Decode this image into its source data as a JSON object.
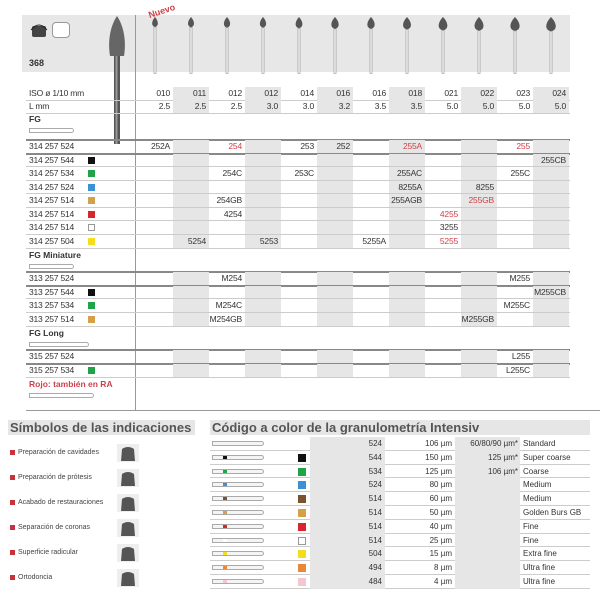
{
  "product": {
    "number": "368",
    "new_label": "Nuevo",
    "indication_icons": [
      "preparacion-protesis-icon",
      "acabado-restauraciones-icon"
    ]
  },
  "columns": {
    "iso_label": "ISO ø 1/10 mm",
    "l_label": "L mm",
    "iso": [
      "010",
      "011",
      "012",
      "012",
      "014",
      "016",
      "016",
      "018",
      "021",
      "022",
      "023",
      "024"
    ],
    "l": [
      "2.5",
      "2.5",
      "2.5",
      "3.0",
      "3.0",
      "3.2",
      "3.5",
      "3.5",
      "5.0",
      "5.0",
      "5.0",
      "5.0"
    ]
  },
  "colors": {
    "black": "#111111",
    "green": "#22a34a",
    "blue": "#3d8fd6",
    "gold": "#d4a04a",
    "red": "#d8262e",
    "white": "#ffffff",
    "yellow": "#f2de1a",
    "brown": "#7a5330",
    "orange": "#e8883a",
    "pink": "#f4c6d0",
    "accent_red": "#d0404a"
  },
  "sections": [
    {
      "name": "FG",
      "rows": [
        {
          "code": "314 257 524",
          "color": null,
          "cells": [
            {
              "c": 0,
              "t": "252A"
            },
            {
              "c": 2,
              "t": "254",
              "red": true
            },
            {
              "c": 4,
              "t": "253"
            },
            {
              "c": 5,
              "t": "252"
            },
            {
              "c": 7,
              "t": "255A",
              "red": true
            },
            {
              "c": 10,
              "t": "255",
              "red": true
            }
          ]
        },
        {
          "code": "314 257 544",
          "color": "black",
          "cells": [
            {
              "c": 11,
              "t": "255CB"
            }
          ]
        },
        {
          "code": "314 257 534",
          "color": "green",
          "cells": [
            {
              "c": 2,
              "t": "254C"
            },
            {
              "c": 4,
              "t": "253C"
            },
            {
              "c": 7,
              "t": "255AC"
            },
            {
              "c": 10,
              "t": "255C"
            }
          ]
        },
        {
          "code": "314 257 524",
          "color": "blue",
          "cells": [
            {
              "c": 7,
              "t": "8255A"
            },
            {
              "c": 9,
              "t": "8255"
            }
          ]
        },
        {
          "code": "314 257 514",
          "color": "gold",
          "cells": [
            {
              "c": 2,
              "t": "254GB"
            },
            {
              "c": 7,
              "t": "255AGB"
            },
            {
              "c": 9,
              "t": "255GB",
              "red": true
            }
          ]
        },
        {
          "code": "314 257 514",
          "color": "red",
          "cells": [
            {
              "c": 2,
              "t": "4254"
            },
            {
              "c": 8,
              "t": "4255",
              "red": true
            }
          ]
        },
        {
          "code": "314 257 514",
          "color": "white",
          "cells": [
            {
              "c": 8,
              "t": "3255"
            }
          ]
        },
        {
          "code": "314 257 504",
          "color": "yellow",
          "cells": [
            {
              "c": 1,
              "t": "5254"
            },
            {
              "c": 3,
              "t": "5253"
            },
            {
              "c": 6,
              "t": "5255A"
            },
            {
              "c": 8,
              "t": "5255",
              "red": true
            }
          ]
        }
      ]
    },
    {
      "name": "FG Miniature",
      "rows": [
        {
          "code": "313 257 524",
          "color": null,
          "cells": [
            {
              "c": 2,
              "t": "M254"
            },
            {
              "c": 10,
              "t": "M255"
            }
          ]
        },
        {
          "code": "313 257 544",
          "color": "black",
          "cells": [
            {
              "c": 11,
              "t": "M255CB"
            }
          ]
        },
        {
          "code": "313 257 534",
          "color": "green",
          "cells": [
            {
              "c": 2,
              "t": "M254C"
            },
            {
              "c": 10,
              "t": "M255C"
            }
          ]
        },
        {
          "code": "313 257 514",
          "color": "gold",
          "cells": [
            {
              "c": 2,
              "t": "M254GB"
            },
            {
              "c": 9,
              "t": "M255GB"
            }
          ]
        }
      ]
    },
    {
      "name": "FG Long",
      "rows": [
        {
          "code": "315 257 524",
          "color": null,
          "cells": [
            {
              "c": 10,
              "t": "L255"
            }
          ]
        },
        {
          "code": "315 257 534",
          "color": "green",
          "cells": [
            {
              "c": 10,
              "t": "L255C"
            }
          ]
        }
      ]
    }
  ],
  "ra_note": "Rojo: también en RA",
  "symbols": {
    "title": "Símbolos de las indicaciones",
    "items": [
      {
        "label": "Preparación de cavidades",
        "icon": "cavity-preparation-icon"
      },
      {
        "label": "Preparación de prótesis",
        "icon": "prosthesis-preparation-icon"
      },
      {
        "label": "Acabado de restauraciones",
        "icon": "restoration-finishing-icon"
      },
      {
        "label": "Separación de coronas",
        "icon": "crown-separation-icon"
      },
      {
        "label": "Superficie radicular",
        "icon": "root-surface-icon"
      },
      {
        "label": "Ortodoncia",
        "icon": "orthodontics-icon"
      }
    ]
  },
  "grit": {
    "title": "Código a color de la granulometría Intensiv",
    "rows": [
      {
        "color": null,
        "code": "524",
        "size": "106 µm",
        "alt": "60/80/90 µm*",
        "name": "Standard"
      },
      {
        "color": "black",
        "code": "544",
        "size": "150 µm",
        "alt": "125 µm*",
        "name": "Super coarse"
      },
      {
        "color": "green",
        "code": "534",
        "size": "125 µm",
        "alt": "106 µm*",
        "name": "Coarse"
      },
      {
        "color": "blue",
        "code": "524",
        "size": "80 µm",
        "alt": "",
        "name": "Medium"
      },
      {
        "color": "brown",
        "code": "514",
        "size": "60 µm",
        "alt": "",
        "name": "Medium"
      },
      {
        "color": "gold",
        "code": "514",
        "size": "50 µm",
        "alt": "",
        "name": "Golden Burs GB"
      },
      {
        "color": "red",
        "code": "514",
        "size": "40 µm",
        "alt": "",
        "name": "Fine"
      },
      {
        "color": "white",
        "code": "514",
        "size": "25 µm",
        "alt": "",
        "name": "Fine"
      },
      {
        "color": "yellow",
        "code": "504",
        "size": "15 µm",
        "alt": "",
        "name": "Extra fine"
      },
      {
        "color": "orange",
        "code": "494",
        "size": "8 µm",
        "alt": "",
        "name": "Ultra fine"
      },
      {
        "color": "pink",
        "code": "484",
        "size": "4 µm",
        "alt": "",
        "name": "Ultra fine"
      }
    ]
  }
}
